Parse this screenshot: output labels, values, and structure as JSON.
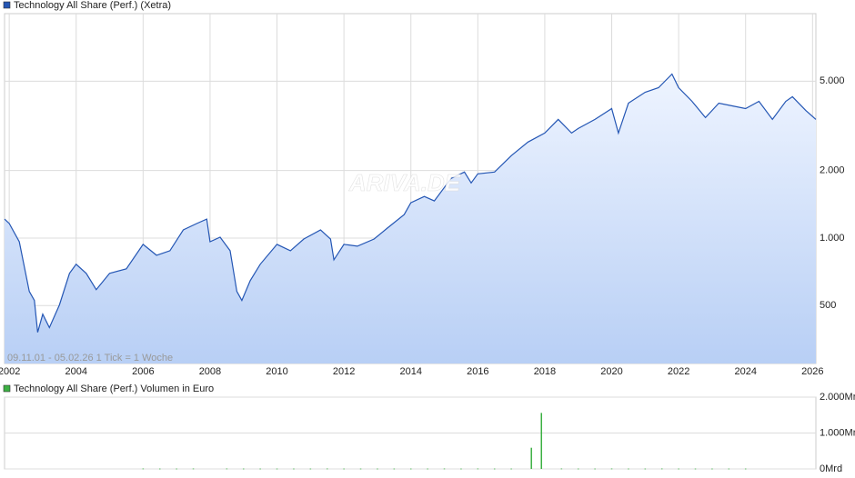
{
  "chart_data": [
    {
      "type": "area",
      "title": "Technology All Share (Perf.) (Xetra)",
      "color": "#2456b4",
      "log_scale": true,
      "grid": true,
      "annotation": "09.11.01 - 05.02.26   1 Tick = 1 Woche",
      "watermark": "ARIVA.DE",
      "x": [
        2001.86,
        2002.0,
        2002.3,
        2002.6,
        2002.75,
        2002.85,
        2003.0,
        2003.2,
        2003.5,
        2003.8,
        2004.0,
        2004.3,
        2004.6,
        2005.0,
        2005.5,
        2006.0,
        2006.4,
        2006.8,
        2007.2,
        2007.6,
        2007.9,
        2008.0,
        2008.3,
        2008.6,
        2008.8,
        2008.95,
        2009.2,
        2009.5,
        2010.0,
        2010.4,
        2010.8,
        2011.3,
        2011.6,
        2011.7,
        2012.0,
        2012.4,
        2012.9,
        2013.3,
        2013.8,
        2014.0,
        2014.4,
        2014.7,
        2015.2,
        2015.6,
        2015.8,
        2016.0,
        2016.5,
        2017.0,
        2017.5,
        2018.0,
        2018.4,
        2018.8,
        2019.0,
        2019.5,
        2020.0,
        2020.2,
        2020.5,
        2021.0,
        2021.4,
        2021.8,
        2022.0,
        2022.4,
        2022.8,
        2023.2,
        2023.6,
        2024.0,
        2024.4,
        2024.8,
        2025.2,
        2025.4,
        2025.8,
        2026.1
      ],
      "values": [
        1215,
        1160,
        963,
        578,
        527,
        380,
        458,
        399,
        503,
        696,
        764,
        696,
        589,
        696,
        729,
        937,
        838,
        878,
        1087,
        1160,
        1215,
        963,
        1009,
        878,
        578,
        527,
        646,
        764,
        937,
        878,
        990,
        1087,
        990,
        800,
        937,
        920,
        990,
        1108,
        1273,
        1436,
        1532,
        1463,
        1845,
        1969,
        1761,
        1932,
        1969,
        2328,
        2677,
        2937,
        3377,
        2937,
        3077,
        3377,
        3775,
        2937,
        3993,
        4462,
        4675,
        5380,
        4675,
        4067,
        3440,
        3993,
        3880,
        3775,
        4067,
        3377,
        4067,
        4266,
        3699,
        3377
      ],
      "xlim": [
        2001.86,
        2026.1
      ],
      "xticks": [
        2002,
        2004,
        2006,
        2008,
        2010,
        2012,
        2014,
        2016,
        2018,
        2020,
        2022,
        2024,
        2026
      ],
      "ylim": [
        276,
        10000
      ],
      "yticks": [
        {
          "value": 500,
          "label": "500"
        },
        {
          "value": 1000,
          "label": "1.000"
        },
        {
          "value": 2000,
          "label": "2.000"
        },
        {
          "value": 5000,
          "label": "5.000"
        }
      ]
    },
    {
      "type": "bar",
      "title": "Technology All Share (Perf.) Volumen in Euro",
      "color": "#3cb043",
      "grid": true,
      "x": [
        2006.0,
        2006.5,
        2007.0,
        2007.5,
        2008.5,
        2009.0,
        2009.5,
        2010.0,
        2010.5,
        2011.0,
        2011.5,
        2012.0,
        2012.5,
        2013.0,
        2013.5,
        2014.0,
        2014.5,
        2015.0,
        2015.5,
        2016.0,
        2016.5,
        2017.0,
        2017.6,
        2017.9,
        2018.5,
        2019.0,
        2019.5,
        2020.0,
        2020.5,
        2021.0,
        2021.5,
        2022.0,
        2022.5,
        2023.0,
        2023.5,
        2024.0
      ],
      "values": [
        12,
        10,
        10,
        12,
        12,
        10,
        10,
        10,
        10,
        10,
        12,
        10,
        10,
        10,
        10,
        10,
        10,
        12,
        10,
        12,
        10,
        10,
        590,
        1560,
        12,
        10,
        10,
        12,
        10,
        10,
        12,
        10,
        10,
        10,
        10,
        10
      ],
      "xlim": [
        2001.86,
        2026.1
      ],
      "ylim": [
        0,
        2000
      ],
      "yticks": [
        {
          "value": 0,
          "label": "0Mrd"
        },
        {
          "value": 1000,
          "label": "1.000Mr"
        },
        {
          "value": 2000,
          "label": "2.000Mr"
        }
      ]
    }
  ]
}
